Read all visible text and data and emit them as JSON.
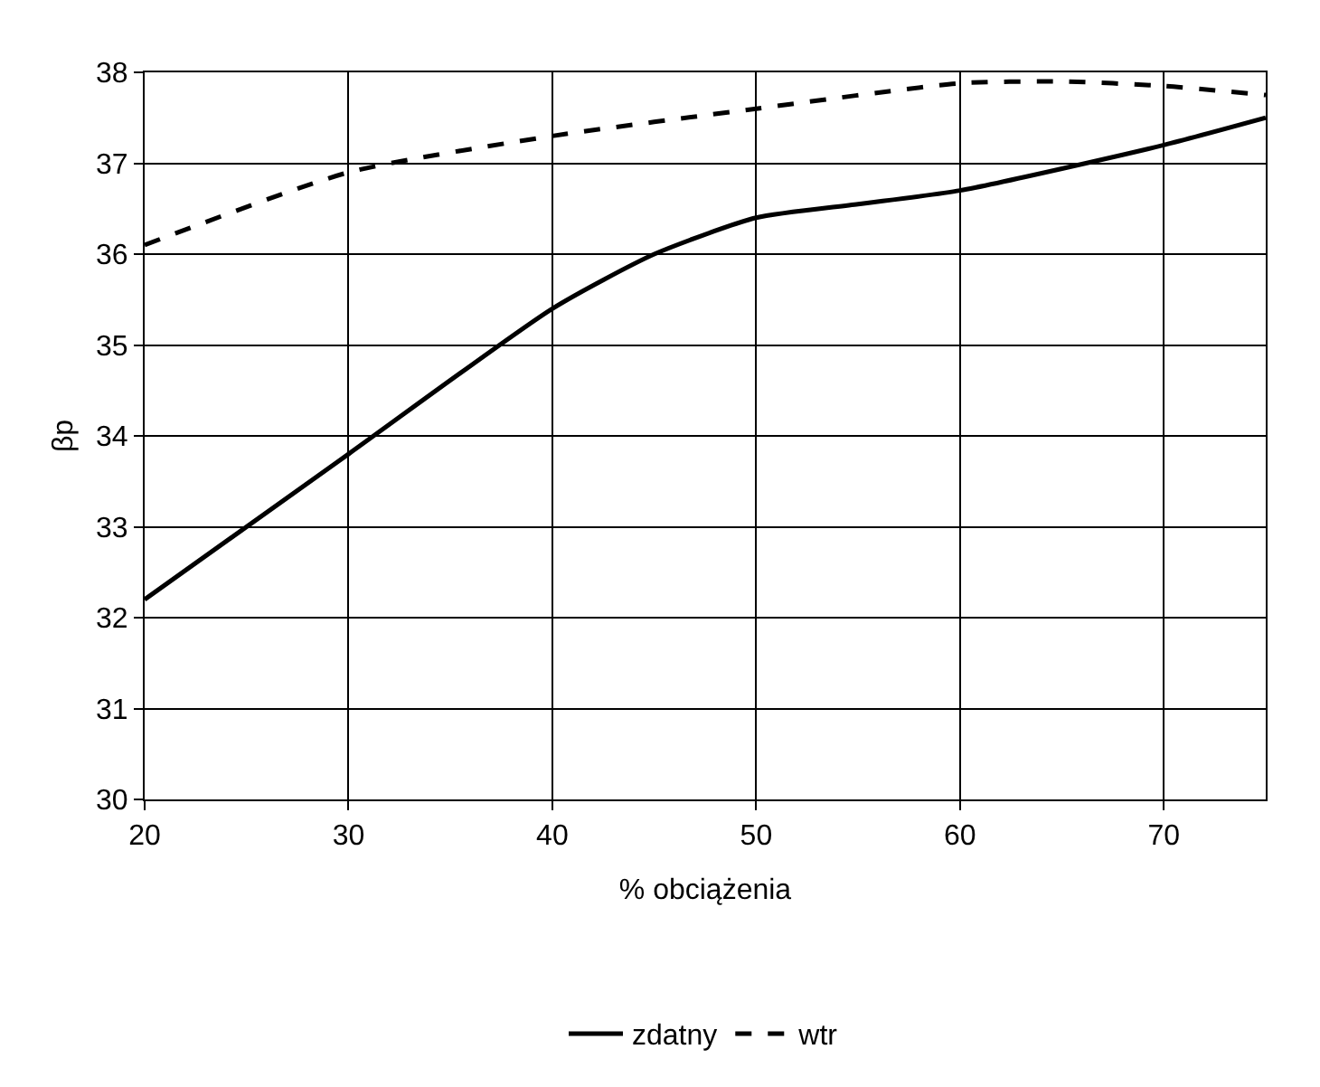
{
  "chart_data": {
    "type": "line",
    "xlabel": "% obciążenia",
    "ylabel": "βp",
    "xlim": [
      20,
      75
    ],
    "xticks": [
      20,
      30,
      40,
      50,
      60,
      70
    ],
    "ylim": [
      30,
      38
    ],
    "yticks": [
      30,
      31,
      32,
      33,
      34,
      35,
      36,
      37,
      38
    ],
    "grid": true,
    "legend": "bottom",
    "marker": "none",
    "series": [
      {
        "name": "zdatny",
        "color": "#000000",
        "line_style": "solid",
        "x": [
          20,
          30,
          40,
          45,
          50,
          55,
          60,
          70,
          75
        ],
        "values": [
          32.2,
          33.8,
          35.4,
          36.0,
          36.4,
          36.55,
          36.7,
          37.2,
          37.5
        ]
      },
      {
        "name": "wtr",
        "color": "#000000",
        "line_style": "dashed",
        "x": [
          20,
          30,
          40,
          50,
          60,
          65,
          70,
          75
        ],
        "values": [
          36.1,
          36.9,
          37.3,
          37.6,
          37.88,
          37.9,
          37.85,
          37.75
        ]
      }
    ]
  }
}
